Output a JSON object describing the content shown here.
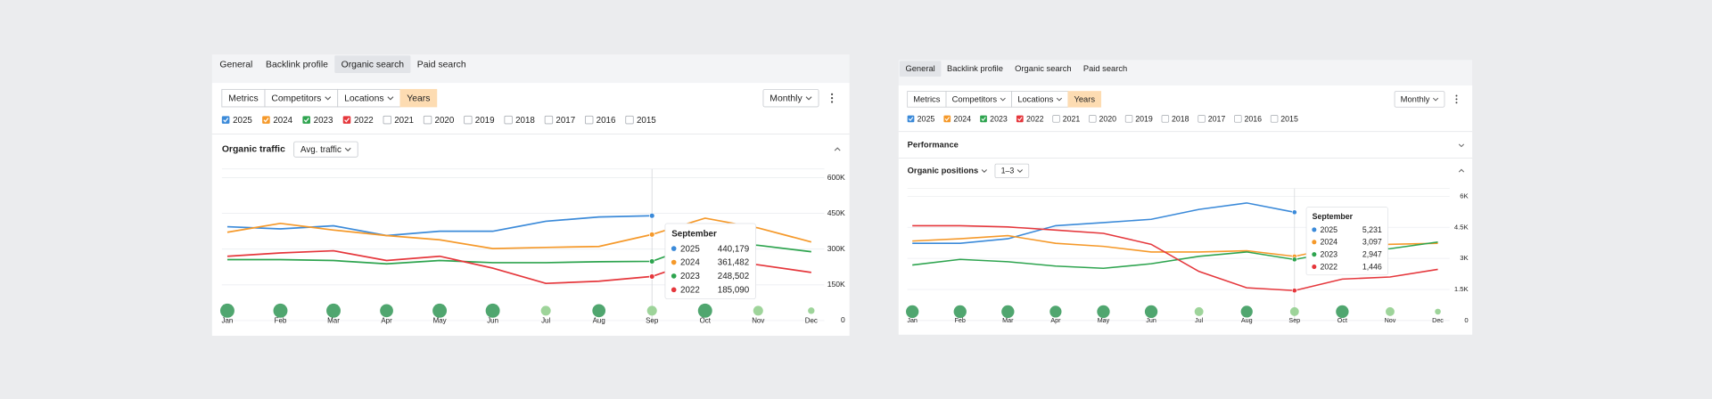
{
  "panels": [
    {
      "tabs": [
        "General",
        "Backlink profile",
        "Organic search",
        "Paid search"
      ],
      "active_tab": 2,
      "toolbar": [
        {
          "label": "Metrics",
          "dropdown": false
        },
        {
          "label": "Competitors",
          "dropdown": true
        },
        {
          "label": "Locations",
          "dropdown": true
        },
        {
          "label": "Years",
          "dropdown": false,
          "active": true
        }
      ],
      "period": "Monthly",
      "years": [
        {
          "label": "2025",
          "checked": true,
          "color": "#3b8ad9"
        },
        {
          "label": "2024",
          "checked": true,
          "color": "#f5992a"
        },
        {
          "label": "2023",
          "checked": true,
          "color": "#2ea44f"
        },
        {
          "label": "2022",
          "checked": true,
          "color": "#e5373c"
        },
        {
          "label": "2021",
          "checked": false
        },
        {
          "label": "2020",
          "checked": false
        },
        {
          "label": "2019",
          "checked": false
        },
        {
          "label": "2018",
          "checked": false
        },
        {
          "label": "2017",
          "checked": false
        },
        {
          "label": "2016",
          "checked": false
        },
        {
          "label": "2015",
          "checked": false
        }
      ],
      "sections": [
        {
          "title": "Organic traffic",
          "title_dropdown": false,
          "filter": "Avg. traffic",
          "expanded": true
        }
      ],
      "chart_data": {
        "type": "line",
        "categories": [
          "Jan",
          "Feb",
          "Mar",
          "Apr",
          "May",
          "Jun",
          "Jul",
          "Aug",
          "Sep",
          "Oct",
          "Nov",
          "Dec"
        ],
        "ylim": [
          0,
          600000
        ],
        "yticks": [
          0,
          {
            "value": 150000,
            "label": "150K"
          },
          {
            "value": 300000,
            "label": "300K"
          },
          {
            "value": 450000,
            "label": "450K"
          },
          {
            "value": 600000,
            "label": "600K"
          }
        ],
        "tooltip_title": "September",
        "highlight": 8,
        "series": [
          {
            "name": "2025",
            "color": "#3b8ad9",
            "values": [
              394000,
              385000,
              398000,
              357000,
              375000,
              375000,
              417000,
              435000,
              440179,
              null,
              null,
              null
            ],
            "value_labels": [
              null,
              null,
              null,
              null,
              null,
              null,
              null,
              null,
              "440,179",
              null,
              null,
              null
            ]
          },
          {
            "name": "2024",
            "color": "#f5992a",
            "values": [
              371000,
              408000,
              380000,
              357000,
              339000,
              302000,
              307000,
              311000,
              361482,
              430000,
              389000,
              330000
            ],
            "value_labels": [
              null,
              null,
              null,
              null,
              null,
              null,
              null,
              null,
              "361,482",
              null,
              null,
              null
            ]
          },
          {
            "name": "2023",
            "color": "#2ea44f",
            "values": [
              256000,
              256000,
              252000,
              238000,
              252000,
              243000,
              243000,
              247000,
              248502,
              330000,
              316000,
              289000
            ],
            "value_labels": [
              null,
              null,
              null,
              null,
              null,
              null,
              null,
              null,
              "248,502",
              null,
              null,
              null
            ]
          },
          {
            "name": "2022",
            "color": "#e5373c",
            "values": [
              270000,
              284000,
              293000,
              252000,
              270000,
              220000,
              156000,
              165000,
              185090,
              261000,
              234000,
              202000
            ],
            "value_labels": [
              null,
              null,
              null,
              null,
              null,
              null,
              null,
              null,
              "185,090",
              null,
              null,
              null
            ]
          }
        ]
      }
    },
    {
      "tabs": [
        "General",
        "Backlink profile",
        "Organic search",
        "Paid search"
      ],
      "active_tab": 0,
      "toolbar": [
        {
          "label": "Metrics",
          "dropdown": false
        },
        {
          "label": "Competitors",
          "dropdown": true
        },
        {
          "label": "Locations",
          "dropdown": true
        },
        {
          "label": "Years",
          "dropdown": false,
          "active": true
        }
      ],
      "period": "Monthly",
      "years": [
        {
          "label": "2025",
          "checked": true,
          "color": "#3b8ad9"
        },
        {
          "label": "2024",
          "checked": true,
          "color": "#f5992a"
        },
        {
          "label": "2023",
          "checked": true,
          "color": "#2ea44f"
        },
        {
          "label": "2022",
          "checked": true,
          "color": "#e5373c"
        },
        {
          "label": "2021",
          "checked": false
        },
        {
          "label": "2020",
          "checked": false
        },
        {
          "label": "2019",
          "checked": false
        },
        {
          "label": "2018",
          "checked": false
        },
        {
          "label": "2017",
          "checked": false
        },
        {
          "label": "2016",
          "checked": false
        },
        {
          "label": "2015",
          "checked": false
        }
      ],
      "sections": [
        {
          "title": "Performance",
          "title_dropdown": false,
          "expanded": false
        },
        {
          "title": "Organic positions",
          "title_dropdown": true,
          "filter": "1–3",
          "expanded": true
        }
      ],
      "chart_data": {
        "type": "line",
        "categories": [
          "Jan",
          "Feb",
          "Mar",
          "Apr",
          "May",
          "Jun",
          "Jul",
          "Aug",
          "Sep",
          "Oct",
          "Nov",
          "Dec"
        ],
        "ylim": [
          0,
          6000
        ],
        "yticks": [
          0,
          {
            "value": 1500,
            "label": "1.5K"
          },
          {
            "value": 3000,
            "label": "3K"
          },
          {
            "value": 4500,
            "label": "4.5K"
          },
          {
            "value": 6000,
            "label": "6K"
          }
        ],
        "tooltip_title": "September",
        "highlight": 8,
        "series": [
          {
            "name": "2025",
            "color": "#3b8ad9",
            "values": [
              3730,
              3730,
              3950,
              4580,
              4730,
              4890,
              5370,
              5680,
              5231,
              null,
              null,
              null
            ],
            "value_labels": [
              null,
              null,
              null,
              null,
              null,
              null,
              null,
              null,
              "5,231",
              null,
              null,
              null
            ]
          },
          {
            "name": "2024",
            "color": "#f5992a",
            "values": [
              3840,
              3950,
              4100,
              3730,
              3580,
              3310,
              3310,
              3370,
              3097,
              3580,
              3680,
              3730
            ],
            "value_labels": [
              null,
              null,
              null,
              null,
              null,
              null,
              null,
              null,
              "3,097",
              null,
              null,
              null
            ]
          },
          {
            "name": "2023",
            "color": "#2ea44f",
            "values": [
              2680,
              2950,
              2840,
              2630,
              2520,
              2740,
              3100,
              3310,
              2947,
              3370,
              3470,
              3790
            ],
            "value_labels": [
              null,
              null,
              null,
              null,
              null,
              null,
              null,
              null,
              "2,947",
              null,
              null,
              null
            ]
          },
          {
            "name": "2022",
            "color": "#e5373c",
            "values": [
              4580,
              4580,
              4520,
              4370,
              4210,
              3680,
              2370,
              1580,
              1446,
              2000,
              2100,
              2470
            ],
            "value_labels": [
              null,
              null,
              null,
              null,
              null,
              null,
              null,
              null,
              "1,446",
              null,
              null,
              null
            ]
          }
        ]
      }
    }
  ]
}
